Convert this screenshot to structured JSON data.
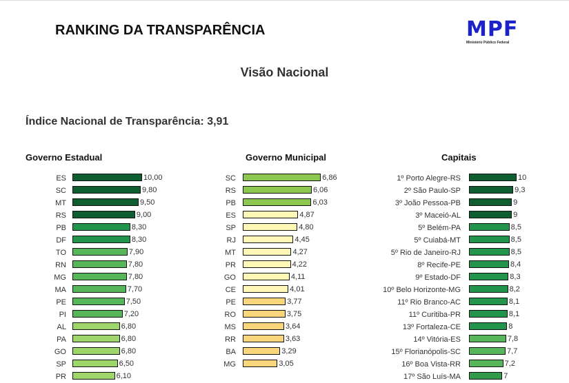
{
  "header": {
    "title": "RANKING DA TRANSPARÊNCIA",
    "logo_text": "MPF",
    "logo_subtext": "Ministério Público Federal"
  },
  "subtitle": "Visão Nacional",
  "national_index": "Índice Nacional de Transparência: 3,91",
  "chart_data": [
    {
      "type": "bar",
      "orientation": "horizontal",
      "title": "Governo Estadual",
      "xlim": [
        0,
        10
      ],
      "categories": [
        "ES",
        "SC",
        "MT",
        "RS",
        "PB",
        "DF",
        "TO",
        "RN",
        "MG",
        "MA",
        "PE",
        "PI",
        "AL",
        "PA",
        "GO",
        "SP",
        "PR"
      ],
      "values": [
        10.0,
        9.8,
        9.5,
        9.0,
        8.3,
        8.3,
        7.9,
        7.8,
        7.8,
        7.7,
        7.5,
        7.2,
        6.8,
        6.8,
        6.8,
        6.5,
        6.1
      ],
      "labels": [
        "10,00",
        "9,80",
        "9,50",
        "9,00",
        "8,30",
        "8,30",
        "7,90",
        "7,80",
        "7,80",
        "7,70",
        "7,50",
        "7,20",
        "6,80",
        "6,80",
        "6,80",
        "6,50",
        "6,10"
      ],
      "colors": [
        "#0f5e31",
        "#0f5e31",
        "#0f5e31",
        "#0f5e31",
        "#23944b",
        "#23944b",
        "#57b55a",
        "#57b55a",
        "#57b55a",
        "#57b55a",
        "#57b55a",
        "#57b55a",
        "#9fd66b",
        "#9fd66b",
        "#9fd66b",
        "#9fd66b",
        "#9fd66b"
      ]
    },
    {
      "type": "bar",
      "orientation": "horizontal",
      "title": "Governo Municipal",
      "xlim": [
        0,
        6.86
      ],
      "categories": [
        "SC",
        "RS",
        "PB",
        "ES",
        "SP",
        "RJ",
        "MT",
        "PR",
        "GO",
        "CE",
        "PE",
        "RO",
        "MS",
        "RR",
        "BA",
        "MG"
      ],
      "values": [
        6.86,
        6.06,
        6.03,
        4.87,
        4.8,
        4.45,
        4.27,
        4.22,
        4.11,
        4.01,
        3.77,
        3.75,
        3.64,
        3.63,
        3.29,
        3.05
      ],
      "labels": [
        "6,86",
        "6,06",
        "6,03",
        "4,87",
        "4,80",
        "4,45",
        "4,27",
        "4,22",
        "4,11",
        "4,01",
        "3,77",
        "3,75",
        "3,64",
        "3,63",
        "3,29",
        "3,05"
      ],
      "colors": [
        "#8cc84f",
        "#8cc84f",
        "#8cc84f",
        "#fff7b5",
        "#fff7b5",
        "#fff7b5",
        "#fff7b5",
        "#fff7b5",
        "#fff7b5",
        "#fff7b5",
        "#f9d57c",
        "#f9d57c",
        "#f9d57c",
        "#f9d57c",
        "#f9d57c",
        "#f9d57c"
      ]
    },
    {
      "type": "bar",
      "orientation": "horizontal",
      "title": "Capitais",
      "xlim": [
        0,
        10
      ],
      "categories": [
        "1º Porto Alegre-RS",
        "2º São Paulo-SP",
        "3º João Pessoa-PB",
        "3º Maceió-AL",
        "5º Belém-PA",
        "5º Cuiabá-MT",
        "5º Rio de Janeiro-RJ",
        "8º Recife-PE",
        "9º Estado-DF",
        "10º Belo Horizonte-MG",
        "11º Rio Branco-AC",
        "11º Curitiba-PR",
        "13º Fortaleza-CE",
        "14º Vitória-ES",
        "15º Florianópolis-SC",
        "16º Boa Vista-RR",
        "17º São Luís-MA"
      ],
      "values": [
        10,
        9.3,
        9,
        9,
        8.5,
        8.5,
        8.5,
        8.4,
        8.3,
        8.2,
        8.1,
        8.1,
        8,
        7.8,
        7.7,
        7.2,
        7
      ],
      "labels": [
        "10",
        "9,3",
        "9",
        "9",
        "8,5",
        "8,5",
        "8,5",
        "8,4",
        "8,3",
        "8,2",
        "8,1",
        "8,1",
        "8",
        "7,8",
        "7,7",
        "7,2",
        "7"
      ],
      "colors": [
        "#0f5e31",
        "#0f5e31",
        "#0f5e31",
        "#0f5e31",
        "#23944b",
        "#23944b",
        "#23944b",
        "#23944b",
        "#23944b",
        "#23944b",
        "#23944b",
        "#23944b",
        "#23944b",
        "#57b55a",
        "#57b55a",
        "#57b55a",
        "#2f9a4c"
      ]
    }
  ]
}
